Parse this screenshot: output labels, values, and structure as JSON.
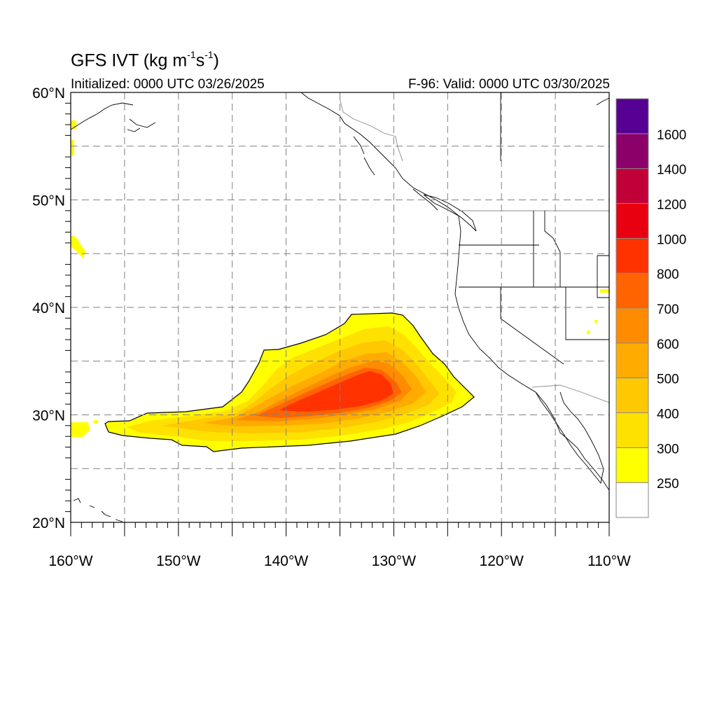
{
  "title": {
    "main": "GFS IVT (kg m",
    "exp1": "-1",
    "mid": "s",
    "exp2": "-1",
    "end": ")"
  },
  "initialized": "Initialized: 0000 UTC 03/26/2025",
  "valid": "F-96: Valid: 0000 UTC 03/30/2025",
  "map": {
    "lon_range": [
      -160,
      -110
    ],
    "lat_range": [
      20,
      60
    ],
    "lon_ticks": [
      -160,
      -150,
      -140,
      -130,
      -120,
      -110
    ],
    "lat_ticks": [
      20,
      30,
      40,
      50,
      60
    ],
    "lon_tick_labels": [
      "160°W",
      "150°W",
      "140°W",
      "130°W",
      "120°W",
      "110°W"
    ],
    "lat_tick_labels": [
      "20°N",
      "30°N",
      "40°N",
      "50°N",
      "60°N"
    ],
    "grid": true,
    "grid_style": "dashed"
  },
  "colorbar": {
    "labels": [
      "250",
      "300",
      "400",
      "500",
      "600",
      "700",
      "800",
      "1000",
      "1200",
      "1400",
      "1600"
    ],
    "colors": [
      "#ffffff",
      "#ffff00",
      "#ffe100",
      "#ffc800",
      "#ffab00",
      "#ff8c00",
      "#ff6400",
      "#ff3200",
      "#e80010",
      "#c20038",
      "#8c006a",
      "#560094"
    ]
  },
  "ivt_plume": {
    "core_center_lon": -133,
    "core_center_lat": 32,
    "max_class": "800-1000"
  }
}
